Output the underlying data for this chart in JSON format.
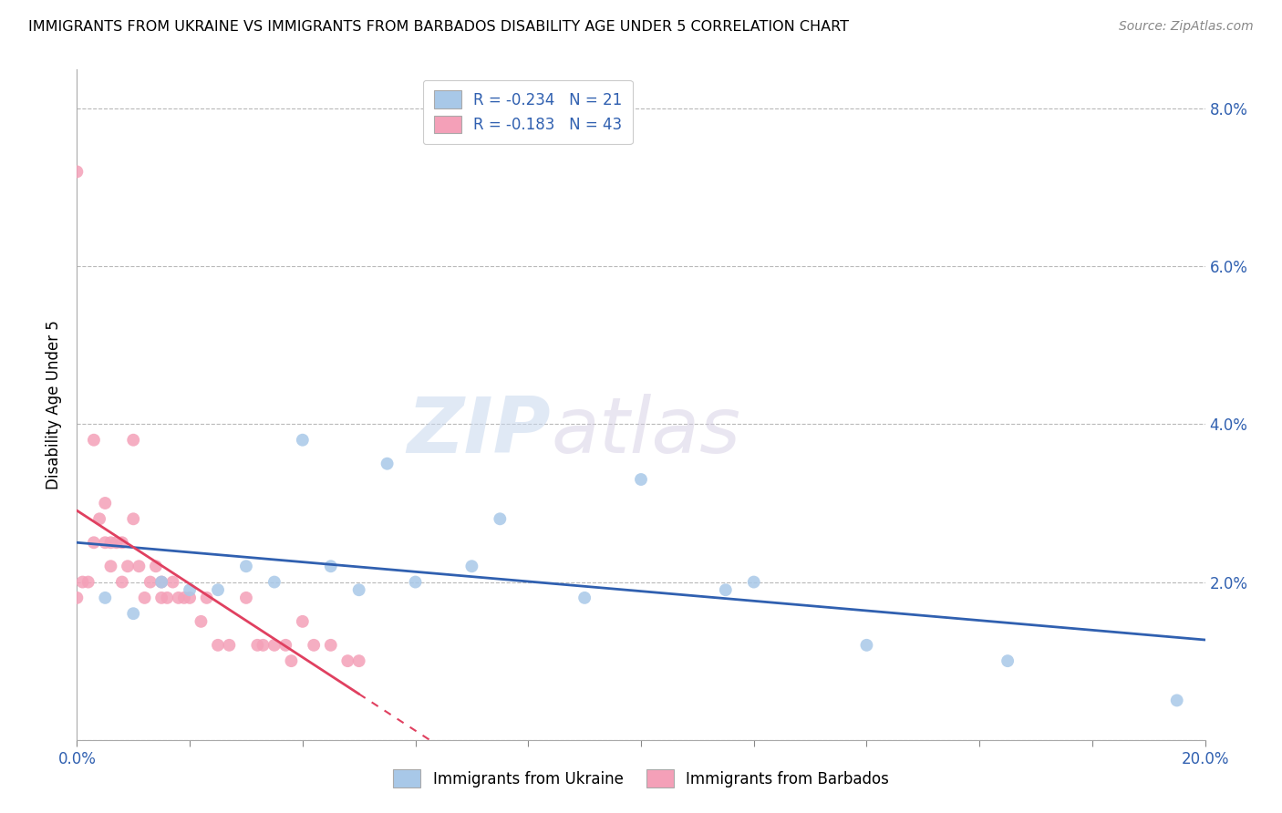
{
  "title": "IMMIGRANTS FROM UKRAINE VS IMMIGRANTS FROM BARBADOS DISABILITY AGE UNDER 5 CORRELATION CHART",
  "source": "Source: ZipAtlas.com",
  "ylabel": "Disability Age Under 5",
  "xlim": [
    0.0,
    0.2
  ],
  "ylim": [
    0.0,
    0.085
  ],
  "yticks": [
    0.0,
    0.02,
    0.04,
    0.06,
    0.08
  ],
  "ytick_labels": [
    "",
    "2.0%",
    "4.0%",
    "6.0%",
    "8.0%"
  ],
  "xticks": [
    0.0,
    0.02,
    0.04,
    0.06,
    0.08,
    0.1,
    0.12,
    0.14,
    0.16,
    0.18,
    0.2
  ],
  "xtick_labels": [
    "0.0%",
    "",
    "",
    "",
    "",
    "",
    "",
    "",
    "",
    "",
    "20.0%"
  ],
  "ukraine_color": "#a8c8e8",
  "barbados_color": "#f4a0b8",
  "ukraine_line_color": "#3060b0",
  "barbados_line_color": "#e04060",
  "legend_R_ukraine": "R = -0.234",
  "legend_N_ukraine": "N = 21",
  "legend_R_barbados": "R = -0.183",
  "legend_N_barbados": "N = 43",
  "watermark_zip": "ZIP",
  "watermark_atlas": "atlas",
  "ukraine_x": [
    0.005,
    0.01,
    0.015,
    0.02,
    0.025,
    0.03,
    0.035,
    0.04,
    0.045,
    0.05,
    0.055,
    0.06,
    0.07,
    0.075,
    0.09,
    0.1,
    0.115,
    0.12,
    0.14,
    0.165,
    0.195
  ],
  "ukraine_y": [
    0.018,
    0.016,
    0.02,
    0.019,
    0.019,
    0.022,
    0.02,
    0.038,
    0.022,
    0.019,
    0.035,
    0.02,
    0.022,
    0.028,
    0.018,
    0.033,
    0.019,
    0.02,
    0.012,
    0.01,
    0.005
  ],
  "barbados_x": [
    0.0,
    0.0,
    0.001,
    0.002,
    0.003,
    0.003,
    0.004,
    0.005,
    0.005,
    0.006,
    0.006,
    0.007,
    0.008,
    0.008,
    0.009,
    0.01,
    0.01,
    0.011,
    0.012,
    0.013,
    0.014,
    0.015,
    0.015,
    0.016,
    0.017,
    0.018,
    0.019,
    0.02,
    0.022,
    0.023,
    0.025,
    0.027,
    0.03,
    0.032,
    0.033,
    0.035,
    0.037,
    0.038,
    0.04,
    0.042,
    0.045,
    0.048,
    0.05
  ],
  "barbados_y": [
    0.072,
    0.018,
    0.02,
    0.02,
    0.038,
    0.025,
    0.028,
    0.025,
    0.03,
    0.022,
    0.025,
    0.025,
    0.02,
    0.025,
    0.022,
    0.038,
    0.028,
    0.022,
    0.018,
    0.02,
    0.022,
    0.018,
    0.02,
    0.018,
    0.02,
    0.018,
    0.018,
    0.018,
    0.015,
    0.018,
    0.012,
    0.012,
    0.018,
    0.012,
    0.012,
    0.012,
    0.012,
    0.01,
    0.015,
    0.012,
    0.012,
    0.01,
    0.01
  ]
}
